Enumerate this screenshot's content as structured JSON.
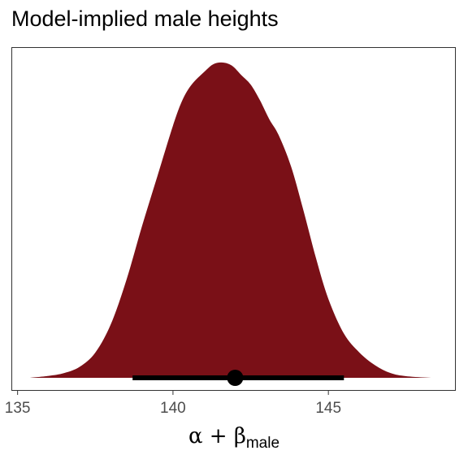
{
  "title": "Model-implied male heights",
  "chart_data": {
    "type": "area",
    "title": "Model-implied male heights",
    "xlabel": {
      "symbol": "α + β",
      "subscript": "male"
    },
    "ylabel": "",
    "xlim": [
      134.8,
      149.1
    ],
    "x_ticks": [
      135,
      140,
      145
    ],
    "x_tick_labels": [
      "135",
      "140",
      "145"
    ],
    "grid": false,
    "density": {
      "x": [
        135.4,
        136.0,
        136.5,
        137.0,
        137.5,
        138.0,
        138.5,
        139.0,
        139.5,
        140.0,
        140.3,
        140.6,
        141.0,
        141.3,
        141.6,
        141.9,
        142.2,
        142.5,
        142.8,
        143.1,
        143.4,
        143.8,
        144.2,
        144.6,
        145.0,
        145.5,
        146.0,
        146.5,
        147.0,
        147.5,
        148.3
      ],
      "y": [
        0.0,
        0.006,
        0.015,
        0.035,
        0.08,
        0.17,
        0.31,
        0.48,
        0.64,
        0.8,
        0.88,
        0.93,
        0.97,
        0.995,
        1.0,
        0.99,
        0.96,
        0.93,
        0.88,
        0.82,
        0.77,
        0.67,
        0.53,
        0.38,
        0.25,
        0.14,
        0.08,
        0.04,
        0.015,
        0.005,
        0.0
      ],
      "color": "#7a1017"
    },
    "point_estimate": 142.0,
    "interval": [
      138.7,
      145.5
    ],
    "interval_color": "#000000"
  }
}
